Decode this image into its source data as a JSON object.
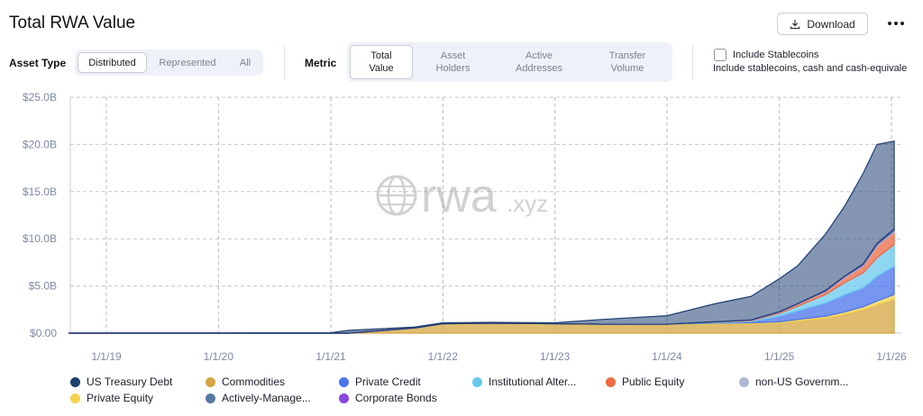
{
  "header": {
    "title": "Total RWA Value",
    "download_label": "Download"
  },
  "controls": {
    "asset_type_label": "Asset Type",
    "asset_type_options": [
      "Distributed",
      "Represented",
      "All"
    ],
    "asset_type_selected": "Distributed",
    "metric_label": "Metric",
    "metric_options": [
      {
        "line1": "Total",
        "line2": "Value"
      },
      {
        "line1": "Asset",
        "line2": "Holders"
      },
      {
        "line1": "Active",
        "line2": "Addresses"
      },
      {
        "line1": "Transfer",
        "line2": "Volume"
      }
    ],
    "metric_selected": "Total Value",
    "include_stablecoins_label": "Include Stablecoins",
    "include_stablecoins_desc": "Include stablecoins, cash and cash-equivale",
    "include_stablecoins_checked": false
  },
  "watermark": {
    "text": "rwa",
    "suffix": ".xyz"
  },
  "colors": {
    "us_treasury_debt": "#1f3f73",
    "commodities": "#d4a540",
    "private_credit": "#4a73ec",
    "institutional_alternative": "#69c8ee",
    "public_equity": "#ee6a43",
    "non_us_government": "#aeb9d6",
    "private_equity": "#f3d24e",
    "actively_managed": "#5678a3",
    "corporate_bonds": "#8845e0"
  },
  "chart_data": {
    "type": "area",
    "stacked": true,
    "title": "Total RWA Value",
    "ylabel": "",
    "xlabel": "",
    "x_ticks": [
      "1/1/19",
      "1/1/20",
      "1/1/21",
      "1/1/22",
      "1/1/23",
      "1/1/24",
      "1/1/25",
      "1/1/26"
    ],
    "y_ticks": [
      "$0.00",
      "$5.0B",
      "$10.0B",
      "$15.0B",
      "$20.0B",
      "$25.0B"
    ],
    "ylim": [
      0,
      25
    ],
    "y_unit": "billion USD",
    "grid": "dashed, vertical and horizontal",
    "legend_position": "bottom",
    "x": [
      "2018-09-01",
      "2019-01-01",
      "2020-01-01",
      "2021-01-01",
      "2021-03-01",
      "2021-10-01",
      "2022-01-01",
      "2022-06-01",
      "2023-01-01",
      "2023-06-01",
      "2024-01-01",
      "2024-06-01",
      "2024-10-01",
      "2025-01-01",
      "2025-03-01",
      "2025-06-01",
      "2025-08-01",
      "2025-10-01",
      "2025-11-15",
      "2026-01-10"
    ],
    "series": [
      {
        "name": "Commodities",
        "values": [
          0,
          0,
          0,
          0,
          0,
          0.55,
          0.95,
          1.0,
          0.95,
          0.9,
          0.9,
          0.95,
          1.0,
          1.1,
          1.3,
          1.6,
          2.0,
          2.5,
          3.0,
          3.6
        ]
      },
      {
        "name": "Private Equity",
        "values": [
          0,
          0,
          0,
          0,
          0,
          0,
          0.05,
          0.05,
          0.05,
          0.05,
          0.05,
          0.1,
          0.1,
          0.1,
          0.15,
          0.2,
          0.25,
          0.3,
          0.4,
          0.5
        ]
      },
      {
        "name": "Private Credit",
        "values": [
          0,
          0,
          0,
          0,
          0,
          0,
          0,
          0,
          0,
          0,
          0,
          0.05,
          0.1,
          0.6,
          0.9,
          1.4,
          1.8,
          2.0,
          2.6,
          3.0
        ]
      },
      {
        "name": "Institutional Alternative",
        "values": [
          0,
          0,
          0,
          0,
          0,
          0,
          0,
          0,
          0,
          0,
          0,
          0.05,
          0.1,
          0.3,
          0.5,
          0.9,
          1.3,
          1.6,
          2.0,
          2.3
        ]
      },
      {
        "name": "Public Equity",
        "values": [
          0,
          0,
          0,
          0,
          0,
          0,
          0,
          0,
          0,
          0,
          0,
          0.02,
          0.05,
          0.1,
          0.2,
          0.3,
          0.5,
          0.7,
          1.2,
          1.3
        ]
      },
      {
        "name": "non-US Government",
        "values": [
          0,
          0,
          0,
          0,
          0,
          0,
          0,
          0,
          0,
          0,
          0,
          0.02,
          0.03,
          0.05,
          0.05,
          0.05,
          0.1,
          0.1,
          0.15,
          0.15
        ]
      },
      {
        "name": "Actively-Managed",
        "values": [
          0,
          0,
          0,
          0,
          0,
          0,
          0,
          0,
          0,
          0,
          0,
          0,
          0,
          0,
          0,
          0.05,
          0.05,
          0.1,
          0.1,
          0.15
        ]
      },
      {
        "name": "Corporate Bonds",
        "values": [
          0,
          0,
          0,
          0,
          0,
          0,
          0,
          0,
          0,
          0,
          0,
          0,
          0.02,
          0.02,
          0.02,
          0.03,
          0.03,
          0.05,
          0.05,
          0.05
        ]
      },
      {
        "name": "US Treasury Debt",
        "values": [
          0.02,
          0.02,
          0.03,
          0.05,
          0.3,
          0.1,
          0.1,
          0.1,
          0.1,
          0.5,
          0.9,
          1.9,
          2.5,
          3.5,
          4.0,
          6.0,
          7.4,
          9.6,
          10.5,
          9.3
        ]
      }
    ],
    "legend": [
      "US Treasury Debt",
      "Commodities",
      "Private Credit",
      "Institutional Alter...",
      "Public Equity",
      "non-US Governm...",
      "Private Equity",
      "Actively-Manage...",
      "Corporate Bonds"
    ]
  }
}
